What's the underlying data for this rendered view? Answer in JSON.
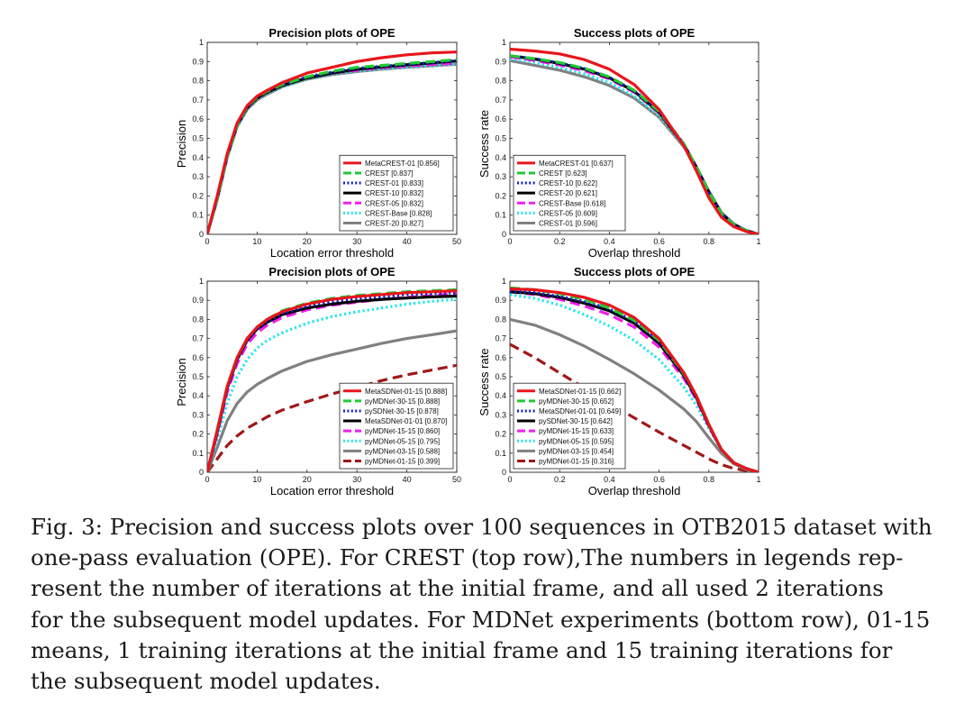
{
  "figure": {
    "caption_lines": [
      "Fig. 3: Precision and success plots over 100 sequences in OTB2015 dataset with",
      "one-pass evaluation (OPE). For CREST (top row),The numbers in legends rep-",
      "resent the number of iterations at the initial frame, and all used 2 iterations",
      "for the subsequent model updates. For MDNet experiments (bottom row), 01-15",
      "means, 1 training iterations at the initial frame and 15 training iterations for",
      "the subsequent model updates."
    ]
  },
  "colors": {
    "red": "#e8151b",
    "green": "#22c934",
    "blue": "#1420c8",
    "black": "#000000",
    "magenta": "#f01ef0",
    "cyan": "#20e6ec",
    "gray": "#808080",
    "darkred": "#a01818"
  },
  "chart_data": [
    {
      "id": "p1",
      "type": "line",
      "title": "Precision plots of OPE",
      "xlabel": "Location error threshold",
      "ylabel": "Precision",
      "xlim": [
        0,
        50
      ],
      "ylim": [
        0,
        1
      ],
      "xticks": [
        0,
        10,
        20,
        30,
        40,
        50
      ],
      "xtick_labels": [
        "0",
        "10",
        "20",
        "30",
        "40",
        "50"
      ],
      "yticks": [
        0,
        0.1,
        0.2,
        0.3,
        0.4,
        0.5,
        0.6,
        0.7,
        0.8,
        0.9,
        1
      ],
      "ytick_labels": [
        "0",
        "0.1",
        "0.2",
        "0.3",
        "0.4",
        "0.5",
        "0.6",
        "0.7",
        "0.8",
        "0.9",
        "1"
      ],
      "legend_position": "bottom-right",
      "x": [
        0,
        2,
        4,
        6,
        8,
        10,
        12,
        15,
        20,
        25,
        30,
        35,
        40,
        45,
        50
      ],
      "series": [
        {
          "name": "MetaCREST-01 [0.856]",
          "color": "red",
          "style": "solid",
          "values": [
            0,
            0.2,
            0.42,
            0.58,
            0.67,
            0.72,
            0.75,
            0.79,
            0.84,
            0.87,
            0.9,
            0.92,
            0.935,
            0.945,
            0.95
          ]
        },
        {
          "name": "CREST [0.837]",
          "color": "green",
          "style": "longdash",
          "values": [
            0,
            0.19,
            0.41,
            0.57,
            0.665,
            0.715,
            0.745,
            0.78,
            0.82,
            0.85,
            0.87,
            0.88,
            0.89,
            0.9,
            0.91
          ]
        },
        {
          "name": "CREST-01 [0.833]",
          "color": "blue",
          "style": "dotted",
          "values": [
            0,
            0.19,
            0.41,
            0.57,
            0.665,
            0.715,
            0.745,
            0.78,
            0.82,
            0.845,
            0.865,
            0.875,
            0.885,
            0.895,
            0.905
          ]
        },
        {
          "name": "CREST-10 [0.832]",
          "color": "black",
          "style": "solid",
          "values": [
            0,
            0.19,
            0.41,
            0.57,
            0.66,
            0.71,
            0.74,
            0.775,
            0.815,
            0.84,
            0.86,
            0.873,
            0.883,
            0.893,
            0.903
          ]
        },
        {
          "name": "CREST-05 [0.832]",
          "color": "magenta",
          "style": "longdash",
          "values": [
            0,
            0.19,
            0.41,
            0.57,
            0.66,
            0.71,
            0.74,
            0.775,
            0.815,
            0.84,
            0.855,
            0.868,
            0.877,
            0.885,
            0.892
          ]
        },
        {
          "name": "CREST-Base [0.828]",
          "color": "cyan",
          "style": "dotted",
          "values": [
            0,
            0.18,
            0.4,
            0.56,
            0.655,
            0.705,
            0.735,
            0.77,
            0.81,
            0.835,
            0.85,
            0.862,
            0.872,
            0.88,
            0.888
          ]
        },
        {
          "name": "CREST-20 [0.827]",
          "color": "gray",
          "style": "solid",
          "values": [
            0,
            0.18,
            0.4,
            0.56,
            0.65,
            0.7,
            0.73,
            0.768,
            0.808,
            0.832,
            0.848,
            0.86,
            0.87,
            0.878,
            0.886
          ]
        }
      ]
    },
    {
      "id": "s1",
      "type": "line",
      "title": "Success plots of OPE",
      "xlabel": "Overlap threshold",
      "ylabel": "Success rate",
      "xlim": [
        0,
        1
      ],
      "ylim": [
        0,
        1
      ],
      "xticks": [
        0,
        0.2,
        0.4,
        0.6,
        0.8,
        1
      ],
      "xtick_labels": [
        "0",
        "0.2",
        "0.4",
        "0.6",
        "0.8",
        "1"
      ],
      "yticks": [
        0,
        0.1,
        0.2,
        0.3,
        0.4,
        0.5,
        0.6,
        0.7,
        0.8,
        0.9,
        1
      ],
      "ytick_labels": [
        "0",
        "0.1",
        "0.2",
        "0.3",
        "0.4",
        "0.5",
        "0.6",
        "0.7",
        "0.8",
        "0.9",
        "1"
      ],
      "legend_position": "bottom-left",
      "x": [
        0,
        0.1,
        0.2,
        0.3,
        0.4,
        0.5,
        0.6,
        0.7,
        0.75,
        0.8,
        0.85,
        0.9,
        0.95,
        1
      ],
      "series": [
        {
          "name": "MetaCREST-01 [0.637]",
          "color": "red",
          "style": "solid",
          "values": [
            0.965,
            0.955,
            0.94,
            0.91,
            0.86,
            0.78,
            0.65,
            0.46,
            0.33,
            0.19,
            0.09,
            0.04,
            0.015,
            0
          ]
        },
        {
          "name": "CREST [0.623]",
          "color": "green",
          "style": "longdash",
          "values": [
            0.93,
            0.915,
            0.895,
            0.865,
            0.82,
            0.75,
            0.64,
            0.47,
            0.35,
            0.22,
            0.11,
            0.05,
            0.02,
            0
          ]
        },
        {
          "name": "CREST-10 [0.622]",
          "color": "blue",
          "style": "dotted",
          "values": [
            0.93,
            0.915,
            0.893,
            0.863,
            0.818,
            0.748,
            0.64,
            0.47,
            0.35,
            0.22,
            0.11,
            0.05,
            0.02,
            0
          ]
        },
        {
          "name": "CREST-20 [0.621]",
          "color": "black",
          "style": "solid",
          "values": [
            0.93,
            0.913,
            0.89,
            0.86,
            0.815,
            0.745,
            0.635,
            0.465,
            0.35,
            0.22,
            0.11,
            0.05,
            0.02,
            0
          ]
        },
        {
          "name": "CREST-Base [0.618]",
          "color": "magenta",
          "style": "longdash",
          "values": [
            0.925,
            0.905,
            0.882,
            0.852,
            0.81,
            0.74,
            0.632,
            0.465,
            0.35,
            0.22,
            0.11,
            0.05,
            0.02,
            0
          ]
        },
        {
          "name": "CREST-05 [0.609]",
          "color": "cyan",
          "style": "dotted",
          "values": [
            0.915,
            0.895,
            0.87,
            0.835,
            0.79,
            0.72,
            0.618,
            0.46,
            0.35,
            0.22,
            0.11,
            0.05,
            0.02,
            0
          ]
        },
        {
          "name": "CREST-01 [0.596]",
          "color": "gray",
          "style": "solid",
          "values": [
            0.905,
            0.88,
            0.855,
            0.82,
            0.775,
            0.71,
            0.61,
            0.455,
            0.35,
            0.225,
            0.115,
            0.055,
            0.02,
            0
          ]
        }
      ]
    },
    {
      "id": "p2",
      "type": "line",
      "title": "Precision plots of OPE",
      "xlabel": "Location error threshold",
      "ylabel": "Precision",
      "xlim": [
        0,
        50
      ],
      "ylim": [
        0,
        1
      ],
      "xticks": [
        0,
        10,
        20,
        30,
        40,
        50
      ],
      "xtick_labels": [
        "0",
        "10",
        "20",
        "30",
        "40",
        "50"
      ],
      "yticks": [
        0,
        0.1,
        0.2,
        0.3,
        0.4,
        0.5,
        0.6,
        0.7,
        0.8,
        0.9,
        1
      ],
      "ytick_labels": [
        "0",
        "0.1",
        "0.2",
        "0.3",
        "0.4",
        "0.5",
        "0.6",
        "0.7",
        "0.8",
        "0.9",
        "1"
      ],
      "legend_position": "bottom-right",
      "x": [
        0,
        2,
        4,
        6,
        8,
        10,
        12,
        15,
        20,
        25,
        30,
        35,
        40,
        45,
        50
      ],
      "series": [
        {
          "name": "MetaSDNet-01-15 [0.888]",
          "color": "red",
          "style": "solid",
          "values": [
            0,
            0.22,
            0.45,
            0.6,
            0.7,
            0.76,
            0.8,
            0.84,
            0.88,
            0.905,
            0.92,
            0.93,
            0.94,
            0.945,
            0.95
          ]
        },
        {
          "name": "pyMDNet-30-15 [0.888]",
          "color": "green",
          "style": "longdash",
          "values": [
            0,
            0.22,
            0.45,
            0.6,
            0.7,
            0.76,
            0.8,
            0.845,
            0.885,
            0.91,
            0.925,
            0.935,
            0.945,
            0.95,
            0.955
          ]
        },
        {
          "name": "pySDNet-30-15 [0.878]",
          "color": "blue",
          "style": "dotted",
          "values": [
            0,
            0.21,
            0.44,
            0.59,
            0.69,
            0.75,
            0.79,
            0.83,
            0.87,
            0.895,
            0.91,
            0.92,
            0.93,
            0.935,
            0.94
          ]
        },
        {
          "name": "MetaSDNet-01-01 [0.870]",
          "color": "black",
          "style": "solid",
          "values": [
            0,
            0.21,
            0.44,
            0.59,
            0.69,
            0.75,
            0.785,
            0.825,
            0.86,
            0.88,
            0.895,
            0.905,
            0.912,
            0.918,
            0.922
          ]
        },
        {
          "name": "pyMDNet-15-15 [0.860]",
          "color": "magenta",
          "style": "longdash",
          "values": [
            0,
            0.2,
            0.42,
            0.57,
            0.67,
            0.73,
            0.77,
            0.81,
            0.85,
            0.875,
            0.89,
            0.905,
            0.915,
            0.925,
            0.935
          ]
        },
        {
          "name": "pyMDNet-05-15 [0.795]",
          "color": "cyan",
          "style": "dotted",
          "values": [
            0,
            0.17,
            0.36,
            0.5,
            0.59,
            0.65,
            0.69,
            0.73,
            0.78,
            0.815,
            0.84,
            0.86,
            0.88,
            0.895,
            0.905
          ]
        },
        {
          "name": "pyMDNet-03-15 [0.588]",
          "color": "gray",
          "style": "solid",
          "values": [
            0,
            0.13,
            0.27,
            0.36,
            0.42,
            0.46,
            0.49,
            0.53,
            0.58,
            0.615,
            0.645,
            0.675,
            0.7,
            0.72,
            0.74
          ]
        },
        {
          "name": "pyMDNet-01-15 [0.399]",
          "color": "darkred",
          "style": "longdash",
          "values": [
            0,
            0.07,
            0.14,
            0.19,
            0.23,
            0.26,
            0.29,
            0.325,
            0.37,
            0.41,
            0.445,
            0.48,
            0.51,
            0.535,
            0.56
          ]
        }
      ]
    },
    {
      "id": "s2",
      "type": "line",
      "title": "Success plots of OPE",
      "xlabel": "Overlap threshold",
      "ylabel": "Success rate",
      "xlim": [
        0,
        1
      ],
      "ylim": [
        0,
        1
      ],
      "xticks": [
        0,
        0.2,
        0.4,
        0.6,
        0.8,
        1
      ],
      "xtick_labels": [
        "0",
        "0.2",
        "0.4",
        "0.6",
        "0.8",
        "1"
      ],
      "yticks": [
        0,
        0.1,
        0.2,
        0.3,
        0.4,
        0.5,
        0.6,
        0.7,
        0.8,
        0.9,
        1
      ],
      "ytick_labels": [
        "0",
        "0.1",
        "0.2",
        "0.3",
        "0.4",
        "0.5",
        "0.6",
        "0.7",
        "0.8",
        "0.9",
        "1"
      ],
      "legend_position": "bottom-left",
      "x": [
        0,
        0.1,
        0.2,
        0.3,
        0.4,
        0.5,
        0.6,
        0.7,
        0.75,
        0.8,
        0.85,
        0.9,
        0.95,
        1
      ],
      "series": [
        {
          "name": "MetaSDNet-01-15 [0.662]",
          "color": "red",
          "style": "solid",
          "values": [
            0.96,
            0.955,
            0.94,
            0.915,
            0.875,
            0.81,
            0.7,
            0.52,
            0.4,
            0.25,
            0.12,
            0.05,
            0.02,
            0
          ]
        },
        {
          "name": "pyMDNet-30-15 [0.652]",
          "color": "green",
          "style": "longdash",
          "values": [
            0.965,
            0.955,
            0.935,
            0.905,
            0.86,
            0.795,
            0.69,
            0.515,
            0.4,
            0.25,
            0.12,
            0.05,
            0.02,
            0
          ]
        },
        {
          "name": "MetaSDNet-01-01 [0.649]",
          "color": "blue",
          "style": "dotted",
          "values": [
            0.95,
            0.94,
            0.92,
            0.895,
            0.855,
            0.79,
            0.685,
            0.51,
            0.395,
            0.25,
            0.12,
            0.05,
            0.02,
            0
          ]
        },
        {
          "name": "pySDNet-30-15 [0.642]",
          "color": "black",
          "style": "solid",
          "values": [
            0.945,
            0.935,
            0.915,
            0.885,
            0.845,
            0.78,
            0.675,
            0.505,
            0.39,
            0.245,
            0.12,
            0.05,
            0.02,
            0
          ]
        },
        {
          "name": "pyMDNet-15-15 [0.633]",
          "color": "magenta",
          "style": "longdash",
          "values": [
            0.945,
            0.93,
            0.905,
            0.87,
            0.825,
            0.76,
            0.655,
            0.49,
            0.38,
            0.24,
            0.12,
            0.05,
            0.02,
            0
          ]
        },
        {
          "name": "pyMDNet-05-15 [0.595]",
          "color": "cyan",
          "style": "dotted",
          "values": [
            0.93,
            0.91,
            0.875,
            0.825,
            0.765,
            0.69,
            0.59,
            0.445,
            0.35,
            0.23,
            0.115,
            0.05,
            0.02,
            0
          ]
        },
        {
          "name": "pyMDNet-03-15 [0.454]",
          "color": "gray",
          "style": "solid",
          "values": [
            0.8,
            0.77,
            0.72,
            0.66,
            0.59,
            0.515,
            0.43,
            0.33,
            0.265,
            0.18,
            0.1,
            0.045,
            0.015,
            0
          ]
        },
        {
          "name": "pyMDNet-01-15 [0.316]",
          "color": "darkred",
          "style": "longdash",
          "values": [
            0.67,
            0.6,
            0.52,
            0.44,
            0.36,
            0.285,
            0.21,
            0.14,
            0.105,
            0.07,
            0.04,
            0.02,
            0.008,
            0
          ]
        }
      ]
    }
  ]
}
